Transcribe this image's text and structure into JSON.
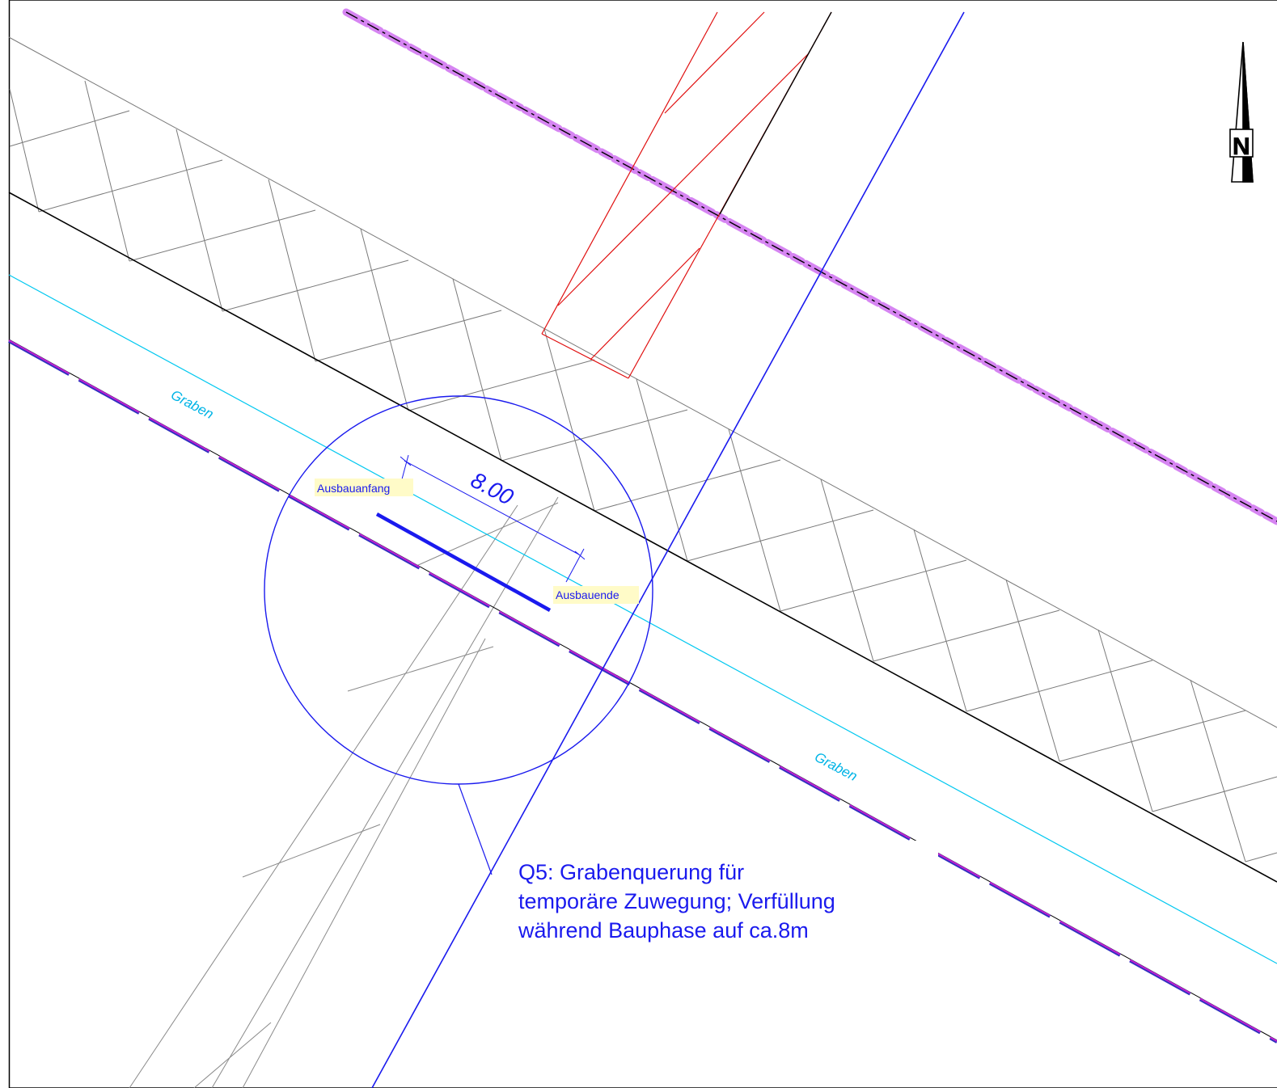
{
  "plan": {
    "ditch_label_upper": "Graben",
    "ditch_label_lower": "Graben",
    "start_label": "Ausbauanfang",
    "end_label": "Ausbauende",
    "dimension_value": "8.00",
    "north_arrow_letter": "N",
    "annotation": {
      "line1": "Q5: Grabenquerung für",
      "line2": "temporäre Zuwegung; Verfüllung",
      "line3": "während Bauphase auf ca.8m"
    }
  },
  "colors": {
    "annotation_blue": "#1a1aee",
    "ditch_cyan": "#00c8f0",
    "parcel_red": "#e01010",
    "highlight_magenta": "#d070f0",
    "label_bg_yellow": "#fffbc8"
  }
}
